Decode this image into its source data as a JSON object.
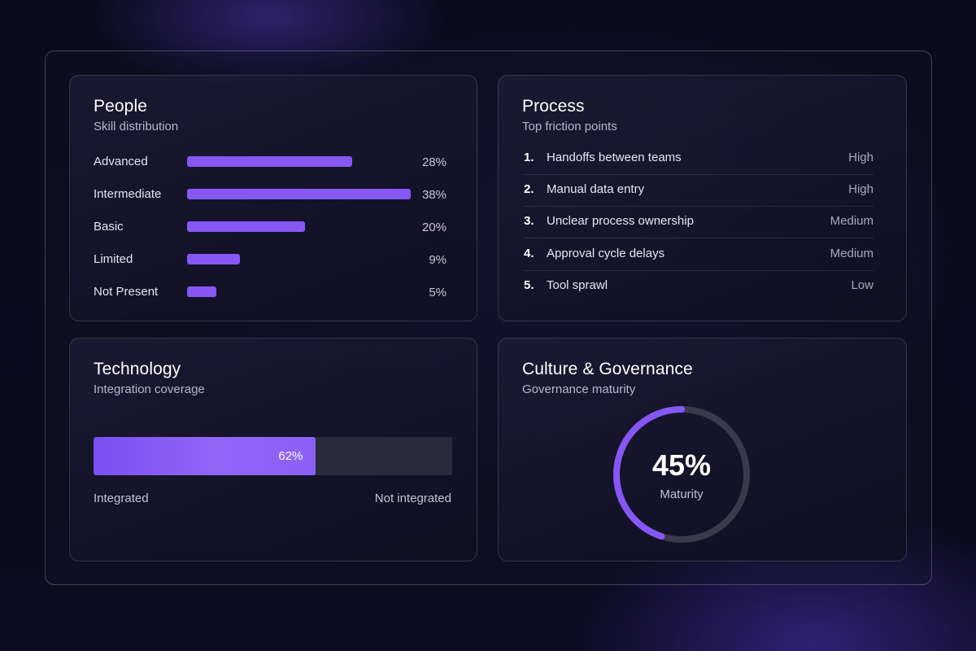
{
  "people": {
    "title": "People",
    "subtitle": "Skill distribution",
    "skills": [
      {
        "label": "Advanced",
        "percent": 28,
        "percent_text": "28%"
      },
      {
        "label": "Intermediate",
        "percent": 38,
        "percent_text": "38%"
      },
      {
        "label": "Basic",
        "percent": 20,
        "percent_text": "20%"
      },
      {
        "label": "Limited",
        "percent": 9,
        "percent_text": "9%"
      },
      {
        "label": "Not Present",
        "percent": 5,
        "percent_text": "5%"
      }
    ]
  },
  "process": {
    "title": "Process",
    "subtitle": "Top friction points",
    "items": [
      {
        "num": "1.",
        "label": "Handoffs between teams",
        "level": "High"
      },
      {
        "num": "2.",
        "label": "Manual data entry",
        "level": "High"
      },
      {
        "num": "3.",
        "label": "Unclear process ownership",
        "level": "Medium"
      },
      {
        "num": "4.",
        "label": "Approval cycle delays",
        "level": "Medium"
      },
      {
        "num": "5.",
        "label": "Tool sprawl",
        "level": "Low"
      }
    ]
  },
  "technology": {
    "title": "Technology",
    "subtitle": "Integration coverage",
    "integrated_percent": 62,
    "integrated_percent_text": "62%",
    "left_label": "Integrated",
    "right_label": "Not integrated"
  },
  "culture": {
    "title": "Culture & Governance",
    "subtitle": "Governance maturity",
    "maturity_percent": 45,
    "maturity_text": "45%",
    "maturity_caption": "Maturity"
  },
  "colors": {
    "accent": "#8557f5",
    "ring_track": "#3a3a4c",
    "background": "#0b0a1c"
  }
}
